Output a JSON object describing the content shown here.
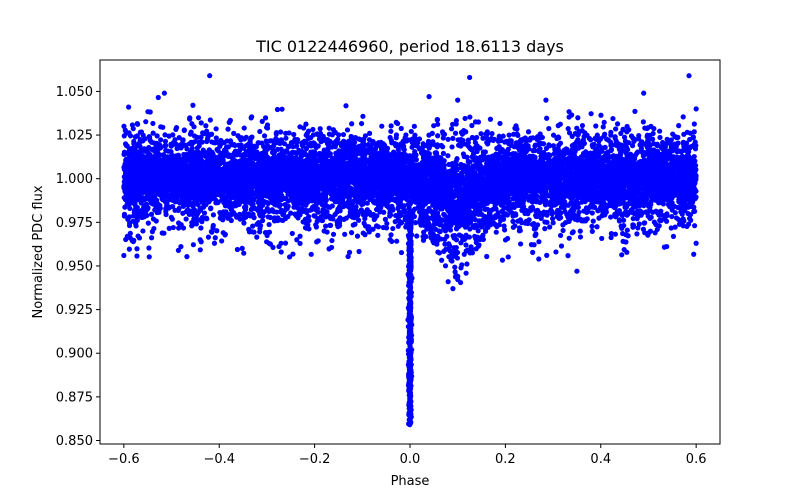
{
  "chart_data": {
    "type": "scatter",
    "title": "TIC 0122446960, period 18.6113 days",
    "xlabel": "Phase",
    "ylabel": "Normalized PDC flux",
    "xlim": [
      -0.65,
      0.65
    ],
    "ylim": [
      0.848,
      1.068
    ],
    "x_ticks": [
      -0.6,
      -0.4,
      -0.2,
      0.0,
      0.2,
      0.4,
      0.6
    ],
    "x_tick_labels": [
      "−0.6",
      "−0.4",
      "−0.2",
      "0.0",
      "0.2",
      "0.4",
      "0.6"
    ],
    "y_ticks": [
      0.85,
      0.875,
      0.9,
      0.925,
      0.95,
      0.975,
      1.0,
      1.025,
      1.05
    ],
    "y_tick_labels": [
      "0.850",
      "0.875",
      "0.900",
      "0.925",
      "0.950",
      "0.975",
      "1.000",
      "1.025",
      "1.050"
    ],
    "grid": false,
    "marker_color": "#0000ff",
    "series": [
      {
        "name": "Normalized PDC flux",
        "description_points": "dense band of points at flux ~1.000 (spread ~0.975–1.025) spanning phase -0.6 to 0.6, with a narrow transit dip near phase 0.0 reaching ~0.858 and a shallow secondary dip near phase 0.1 reaching ~0.935",
        "band": {
          "x_min": -0.6,
          "x_max": 0.6,
          "center": 1.0,
          "core_half_width": 0.012
        },
        "primary_dip": {
          "center": 0.0,
          "min_flux": 0.859
        },
        "secondary_dip": {
          "center": 0.1,
          "min_flux": 0.933
        },
        "outliers": [
          {
            "x": -0.42,
            "y": 1.059
          },
          {
            "x": 0.125,
            "y": 1.058
          },
          {
            "x": 0.585,
            "y": 1.059
          },
          {
            "x": -0.515,
            "y": 1.049
          },
          {
            "x": 0.49,
            "y": 1.049
          },
          {
            "x": 0.04,
            "y": 1.047
          },
          {
            "x": 0.1,
            "y": 1.045
          },
          {
            "x": 0.285,
            "y": 1.045
          },
          {
            "x": 0.6,
            "y": 1.04
          },
          {
            "x": -0.59,
            "y": 1.041
          },
          {
            "x": -0.6,
            "y": 0.956
          },
          {
            "x": 0.6,
            "y": 0.963
          },
          {
            "x": -0.27,
            "y": 0.958
          },
          {
            "x": 0.35,
            "y": 0.947
          },
          {
            "x": 0.09,
            "y": 0.937
          },
          {
            "x": 0.08,
            "y": 0.941
          },
          {
            "x": -0.41,
            "y": 0.963
          },
          {
            "x": 0.27,
            "y": 0.954
          },
          {
            "x": -0.58,
            "y": 0.964
          },
          {
            "x": -0.44,
            "y": 0.965
          }
        ]
      }
    ]
  }
}
